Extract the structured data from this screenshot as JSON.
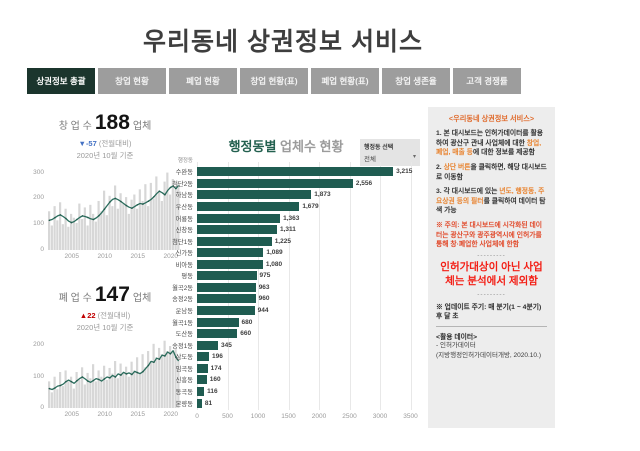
{
  "title": "우리동네 상권정보 서비스",
  "tabs": [
    {
      "label": "상권정보 총괄",
      "active": true
    },
    {
      "label": "창업 현황",
      "active": false
    },
    {
      "label": "폐업 현황",
      "active": false
    },
    {
      "label": "창업 현황(표)",
      "active": false
    },
    {
      "label": "폐업 현황(표)",
      "active": false
    },
    {
      "label": "창업 생존율",
      "active": false
    },
    {
      "label": "고객 경쟁률",
      "active": false
    }
  ],
  "kpi": {
    "startup": {
      "label": "창 업 수",
      "value": "188",
      "unit": "업체",
      "delta": "▼-57",
      "delta_note": "(전월대비)",
      "as_of": "2020년 10월 기준"
    },
    "closure": {
      "label": "폐 업 수",
      "value": "147",
      "unit": "업체",
      "delta": "▲22",
      "delta_note": "(전월대비)",
      "as_of": "2020년 10월 기준"
    }
  },
  "bar_chart_title": {
    "em": "행정동별",
    "rest": " 업체수 현황"
  },
  "dong_filter": {
    "label": "행정동 선택",
    "value": "전체"
  },
  "icons": {
    "dropdown_caret": "▾"
  },
  "notes": {
    "header": "<우리동네 상권정보 서비스>",
    "p1": {
      "pre": "1. 본 대시보드는 인허가데이터를 활용하여 광산구 관내 사업체에 대한 ",
      "em": "창업, 폐업, 매출 등",
      "post": "에 대한 정보를 제공함"
    },
    "p2": {
      "pre": "2. ",
      "em": "상단 버튼",
      "post": "을 클릭하면, 해당 대시보드로 이동함"
    },
    "p3": {
      "pre": "3. 각 대시보드에 있는 ",
      "em": "년도, 행정동, 주요상권 등의 필터",
      "post": "를 클릭하여 데이터 탐색 가능"
    },
    "warn": "※ 주의: 본 대시보드에 시각화된 데이터는 광산구와 광주광역시에 인허가를 통해 창·폐업한 사업체에 한함",
    "dashes": "---------",
    "big": "인허가대상이 아닌 사업체는 분석에서 제외함",
    "update": "※ 업데이트 주기: 매 분기(1 ~ 4분기) 후 달 초",
    "use_header": "<활용 데이터>",
    "use_item": "- 인허가데이터",
    "use_detail": "(지방행정인허가데이터개방, 2020.10.)"
  },
  "colors": {
    "accent_teal": "#1f5c51",
    "tab_active_bg": "#1b352d",
    "tab_bg": "#9d9d9d",
    "alert_red": "#f32017",
    "warn_red": "#e14a2b",
    "notice_orange": "#e8832f",
    "delta_down_blue": "#4472c4",
    "delta_up_red": "#c00000",
    "panel_bg": "#ededed"
  },
  "chart_data": [
    {
      "id": "startup-trend",
      "type": "area",
      "kpi": "창업 수",
      "x_ticks": [
        "2005",
        "2010",
        "2015",
        "2020"
      ],
      "y_ticks": [
        0,
        100,
        200,
        300
      ],
      "ylim": [
        0,
        310
      ],
      "series": [
        {
          "name": "monthly-raw",
          "values": [
            150,
            95,
            170,
            115,
            185,
            100,
            160,
            90,
            140,
            125,
            105,
            180,
            120,
            165,
            95,
            175,
            140,
            110,
            190,
            150,
            230,
            135,
            210,
            170,
            250,
            160,
            220,
            180,
            205,
            140,
            195,
            215,
            160,
            235,
            190,
            255,
            170,
            260,
            200,
            285,
            230,
            190,
            265,
            300,
            215,
            275,
            235,
            260
          ]
        },
        {
          "name": "smoothed",
          "values": [
            115,
            118,
            125,
            132,
            136,
            130,
            122,
            112,
            106,
            110,
            118,
            126,
            132,
            130,
            126,
            121,
            118,
            124,
            133,
            144,
            158,
            172,
            186,
            196,
            200,
            195,
            188,
            180,
            172,
            166,
            162,
            168,
            175,
            180,
            178,
            183,
            189,
            196,
            206,
            218,
            228,
            222,
            214,
            230,
            242,
            248,
            238,
            250
          ]
        }
      ]
    },
    {
      "id": "closure-trend",
      "type": "area",
      "kpi": "폐업 수",
      "x_ticks": [
        "2005",
        "2010",
        "2015",
        "2020"
      ],
      "y_ticks": [
        0,
        100,
        200
      ],
      "ylim": [
        0,
        230
      ],
      "series": [
        {
          "name": "monthly-raw",
          "values": [
            85,
            50,
            100,
            60,
            115,
            70,
            120,
            85,
            100,
            62,
            115,
            90,
            130,
            75,
            112,
            95,
            140,
            85,
            120,
            100,
            135,
            90,
            128,
            110,
            150,
            95,
            142,
            115,
            132,
            100,
            148,
            120,
            162,
            112,
            172,
            130,
            182,
            150,
            205,
            162,
            192,
            172,
            215,
            182,
            198,
            178,
            188,
            162
          ]
        },
        {
          "name": "smoothed",
          "values": [
            62,
            59,
            64,
            70,
            72,
            76,
            84,
            89,
            84,
            79,
            87,
            94,
            99,
            93,
            86,
            82,
            88,
            94,
            91,
            86,
            93,
            99,
            96,
            104,
            99,
            109,
            105,
            114,
            109,
            112,
            107,
            117,
            113,
            110,
            116,
            126,
            136,
            149,
            146,
            159,
            156,
            169,
            166,
            179,
            173,
            183,
            162,
            150
          ]
        }
      ]
    },
    {
      "id": "dong-establishments",
      "type": "bar",
      "orientation": "horizontal",
      "title": "행정동별 업체수 현황",
      "col_header": "행정동",
      "categories": [
        "수완동",
        "첨단2동",
        "하남동",
        "우산동",
        "어룡동",
        "신창동",
        "첨단1동",
        "신가동",
        "비아동",
        "평동",
        "월곡2동",
        "송정2동",
        "운남동",
        "월곡1동",
        "도산동",
        "송정1동",
        "삼도동",
        "임곡동",
        "신흥동",
        "동곡동",
        "본량동"
      ],
      "values": [
        3215,
        2556,
        1873,
        1679,
        1363,
        1311,
        1225,
        1089,
        1080,
        975,
        963,
        960,
        944,
        680,
        660,
        345,
        196,
        174,
        160,
        116,
        81
      ],
      "value_labels": [
        "3,215",
        "2,556",
        "1,873",
        "1,679",
        "1,363",
        "1,311",
        "1,225",
        "1,089",
        "1,080",
        "975",
        "963",
        "960",
        "944",
        "680",
        "660",
        "345",
        "196",
        "174",
        "160",
        "116",
        "81"
      ],
      "x_ticks": [
        0,
        500,
        1000,
        1500,
        2000,
        2500,
        3000,
        3500
      ],
      "xlim": [
        0,
        3500
      ]
    }
  ]
}
